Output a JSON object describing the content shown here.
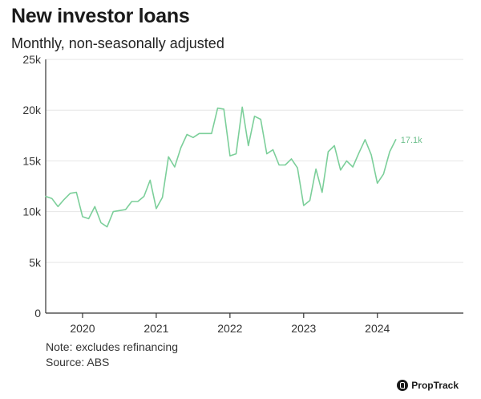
{
  "header": {
    "title": "New investor loans",
    "subtitle": "Monthly, non-seasonally adjusted"
  },
  "footer": {
    "note": "Note: excludes refinancing",
    "source": "Source: ABS",
    "brand": "PropTrack"
  },
  "colors": {
    "line": "#7ccf9a",
    "label": "#6fc08e",
    "axis": "#333333",
    "grid": "#e6e6e6"
  },
  "chart_data": {
    "type": "line",
    "title": "New investor loans",
    "subtitle": "Monthly, non-seasonally adjusted",
    "xlabel": "",
    "ylabel": "",
    "ylim": [
      0,
      25000
    ],
    "yticks": [
      0,
      5000,
      10000,
      15000,
      20000,
      25000
    ],
    "ytick_labels": [
      "0",
      "5k",
      "10k",
      "15k",
      "20k",
      "25k"
    ],
    "xticks": [
      2020,
      2021,
      2022,
      2023,
      2024
    ],
    "xtick_labels": [
      "2020",
      "2021",
      "2022",
      "2023",
      "2024"
    ],
    "xlim": [
      "2019-07",
      "2025-03"
    ],
    "grid": "horizontal",
    "end_label": "17.1k",
    "series": [
      {
        "x": [
          "2019-07",
          "2019-08",
          "2019-09",
          "2019-10",
          "2019-11",
          "2019-12",
          "2020-01",
          "2020-02",
          "2020-03",
          "2020-04",
          "2020-05",
          "2020-06",
          "2020-07",
          "2020-08",
          "2020-09",
          "2020-10",
          "2020-11",
          "2020-12",
          "2021-01",
          "2021-02",
          "2021-03",
          "2021-04",
          "2021-05",
          "2021-06",
          "2021-07",
          "2021-08",
          "2021-09",
          "2021-10",
          "2021-11",
          "2021-12",
          "2022-01",
          "2022-02",
          "2022-03",
          "2022-04",
          "2022-05",
          "2022-06",
          "2022-07",
          "2022-08",
          "2022-09",
          "2022-10",
          "2022-11",
          "2022-12",
          "2023-01",
          "2023-02",
          "2023-03",
          "2023-04",
          "2023-05",
          "2023-06",
          "2023-07",
          "2023-08",
          "2023-09",
          "2023-10",
          "2023-11",
          "2023-12",
          "2024-01",
          "2024-02",
          "2024-03",
          "2024-04"
        ],
        "values": [
          11500,
          11300,
          10500,
          11200,
          11800,
          11900,
          9500,
          9300,
          10500,
          8900,
          8500,
          10000,
          10100,
          10200,
          11000,
          11000,
          11500,
          13100,
          10300,
          11400,
          15400,
          14400,
          16300,
          17600,
          17300,
          17700,
          17700,
          17700,
          20200,
          20100,
          15500,
          15700,
          20300,
          16500,
          19400,
          19100,
          15700,
          16100,
          14600,
          14600,
          15200,
          14300,
          10600,
          11100,
          14200,
          11900,
          15900,
          16500,
          14100,
          15000,
          14400,
          15800,
          17100,
          15600,
          12800,
          13700,
          15900,
          17100
        ]
      }
    ]
  }
}
